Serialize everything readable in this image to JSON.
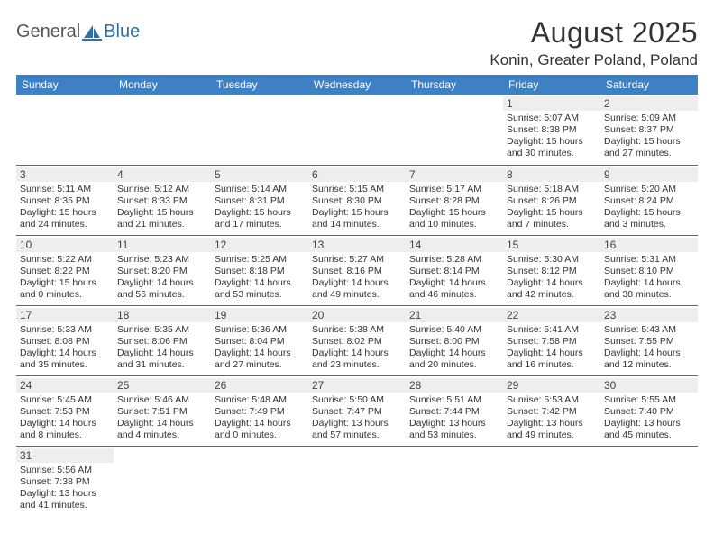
{
  "logo": {
    "part1": "General",
    "part2": "Blue"
  },
  "title": "August 2025",
  "location": "Konin, Greater Poland, Poland",
  "colors": {
    "header_bg": "#3d80c4",
    "header_text": "#ffffff",
    "row_border": "#3d6da0",
    "daynum_bg": "#eeeeee",
    "logo_accent": "#2f6fa8"
  },
  "weekdays": [
    "Sunday",
    "Monday",
    "Tuesday",
    "Wednesday",
    "Thursday",
    "Friday",
    "Saturday"
  ],
  "weeks": [
    [
      null,
      null,
      null,
      null,
      null,
      {
        "day": "1",
        "sunrise": "Sunrise: 5:07 AM",
        "sunset": "Sunset: 8:38 PM",
        "daylight": "Daylight: 15 hours and 30 minutes."
      },
      {
        "day": "2",
        "sunrise": "Sunrise: 5:09 AM",
        "sunset": "Sunset: 8:37 PM",
        "daylight": "Daylight: 15 hours and 27 minutes."
      }
    ],
    [
      {
        "day": "3",
        "sunrise": "Sunrise: 5:11 AM",
        "sunset": "Sunset: 8:35 PM",
        "daylight": "Daylight: 15 hours and 24 minutes."
      },
      {
        "day": "4",
        "sunrise": "Sunrise: 5:12 AM",
        "sunset": "Sunset: 8:33 PM",
        "daylight": "Daylight: 15 hours and 21 minutes."
      },
      {
        "day": "5",
        "sunrise": "Sunrise: 5:14 AM",
        "sunset": "Sunset: 8:31 PM",
        "daylight": "Daylight: 15 hours and 17 minutes."
      },
      {
        "day": "6",
        "sunrise": "Sunrise: 5:15 AM",
        "sunset": "Sunset: 8:30 PM",
        "daylight": "Daylight: 15 hours and 14 minutes."
      },
      {
        "day": "7",
        "sunrise": "Sunrise: 5:17 AM",
        "sunset": "Sunset: 8:28 PM",
        "daylight": "Daylight: 15 hours and 10 minutes."
      },
      {
        "day": "8",
        "sunrise": "Sunrise: 5:18 AM",
        "sunset": "Sunset: 8:26 PM",
        "daylight": "Daylight: 15 hours and 7 minutes."
      },
      {
        "day": "9",
        "sunrise": "Sunrise: 5:20 AM",
        "sunset": "Sunset: 8:24 PM",
        "daylight": "Daylight: 15 hours and 3 minutes."
      }
    ],
    [
      {
        "day": "10",
        "sunrise": "Sunrise: 5:22 AM",
        "sunset": "Sunset: 8:22 PM",
        "daylight": "Daylight: 15 hours and 0 minutes."
      },
      {
        "day": "11",
        "sunrise": "Sunrise: 5:23 AM",
        "sunset": "Sunset: 8:20 PM",
        "daylight": "Daylight: 14 hours and 56 minutes."
      },
      {
        "day": "12",
        "sunrise": "Sunrise: 5:25 AM",
        "sunset": "Sunset: 8:18 PM",
        "daylight": "Daylight: 14 hours and 53 minutes."
      },
      {
        "day": "13",
        "sunrise": "Sunrise: 5:27 AM",
        "sunset": "Sunset: 8:16 PM",
        "daylight": "Daylight: 14 hours and 49 minutes."
      },
      {
        "day": "14",
        "sunrise": "Sunrise: 5:28 AM",
        "sunset": "Sunset: 8:14 PM",
        "daylight": "Daylight: 14 hours and 46 minutes."
      },
      {
        "day": "15",
        "sunrise": "Sunrise: 5:30 AM",
        "sunset": "Sunset: 8:12 PM",
        "daylight": "Daylight: 14 hours and 42 minutes."
      },
      {
        "day": "16",
        "sunrise": "Sunrise: 5:31 AM",
        "sunset": "Sunset: 8:10 PM",
        "daylight": "Daylight: 14 hours and 38 minutes."
      }
    ],
    [
      {
        "day": "17",
        "sunrise": "Sunrise: 5:33 AM",
        "sunset": "Sunset: 8:08 PM",
        "daylight": "Daylight: 14 hours and 35 minutes."
      },
      {
        "day": "18",
        "sunrise": "Sunrise: 5:35 AM",
        "sunset": "Sunset: 8:06 PM",
        "daylight": "Daylight: 14 hours and 31 minutes."
      },
      {
        "day": "19",
        "sunrise": "Sunrise: 5:36 AM",
        "sunset": "Sunset: 8:04 PM",
        "daylight": "Daylight: 14 hours and 27 minutes."
      },
      {
        "day": "20",
        "sunrise": "Sunrise: 5:38 AM",
        "sunset": "Sunset: 8:02 PM",
        "daylight": "Daylight: 14 hours and 23 minutes."
      },
      {
        "day": "21",
        "sunrise": "Sunrise: 5:40 AM",
        "sunset": "Sunset: 8:00 PM",
        "daylight": "Daylight: 14 hours and 20 minutes."
      },
      {
        "day": "22",
        "sunrise": "Sunrise: 5:41 AM",
        "sunset": "Sunset: 7:58 PM",
        "daylight": "Daylight: 14 hours and 16 minutes."
      },
      {
        "day": "23",
        "sunrise": "Sunrise: 5:43 AM",
        "sunset": "Sunset: 7:55 PM",
        "daylight": "Daylight: 14 hours and 12 minutes."
      }
    ],
    [
      {
        "day": "24",
        "sunrise": "Sunrise: 5:45 AM",
        "sunset": "Sunset: 7:53 PM",
        "daylight": "Daylight: 14 hours and 8 minutes."
      },
      {
        "day": "25",
        "sunrise": "Sunrise: 5:46 AM",
        "sunset": "Sunset: 7:51 PM",
        "daylight": "Daylight: 14 hours and 4 minutes."
      },
      {
        "day": "26",
        "sunrise": "Sunrise: 5:48 AM",
        "sunset": "Sunset: 7:49 PM",
        "daylight": "Daylight: 14 hours and 0 minutes."
      },
      {
        "day": "27",
        "sunrise": "Sunrise: 5:50 AM",
        "sunset": "Sunset: 7:47 PM",
        "daylight": "Daylight: 13 hours and 57 minutes."
      },
      {
        "day": "28",
        "sunrise": "Sunrise: 5:51 AM",
        "sunset": "Sunset: 7:44 PM",
        "daylight": "Daylight: 13 hours and 53 minutes."
      },
      {
        "day": "29",
        "sunrise": "Sunrise: 5:53 AM",
        "sunset": "Sunset: 7:42 PM",
        "daylight": "Daylight: 13 hours and 49 minutes."
      },
      {
        "day": "30",
        "sunrise": "Sunrise: 5:55 AM",
        "sunset": "Sunset: 7:40 PM",
        "daylight": "Daylight: 13 hours and 45 minutes."
      }
    ],
    [
      {
        "day": "31",
        "sunrise": "Sunrise: 5:56 AM",
        "sunset": "Sunset: 7:38 PM",
        "daylight": "Daylight: 13 hours and 41 minutes."
      },
      null,
      null,
      null,
      null,
      null,
      null
    ]
  ]
}
